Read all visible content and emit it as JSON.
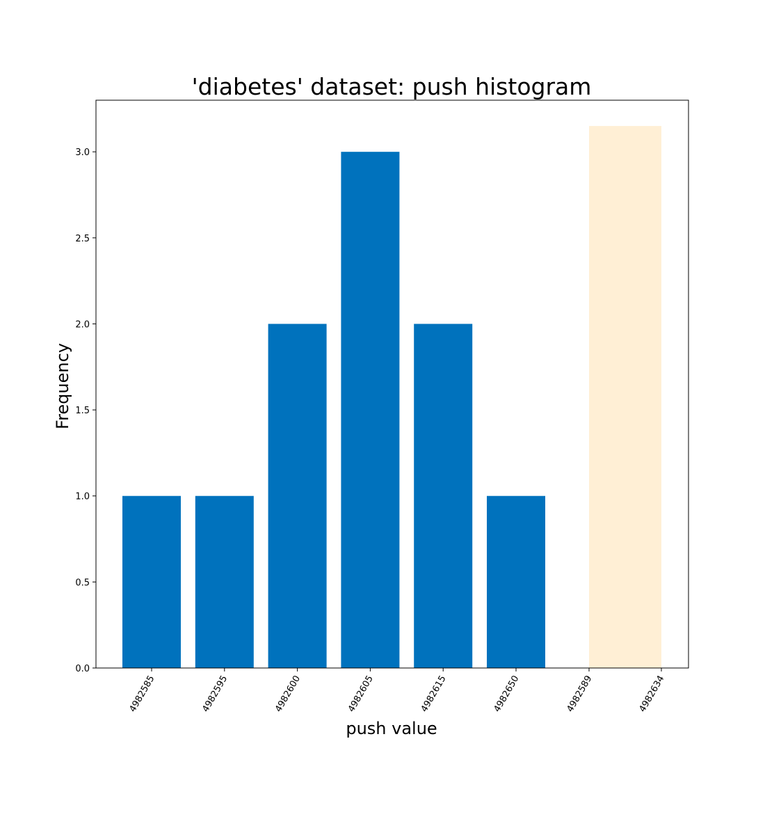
{
  "chart_data": {
    "type": "bar",
    "title": "'diabetes' dataset: push histogram",
    "xlabel": "push value",
    "ylabel": "Frequency",
    "ylim": [
      0,
      3.3
    ],
    "yticks": [
      "0.0",
      "0.5",
      "1.0",
      "1.5",
      "2.0",
      "2.5",
      "3.0"
    ],
    "categories": [
      "4982585",
      "4982595",
      "4982600",
      "4982605",
      "4982615",
      "4982650"
    ],
    "values": [
      1,
      1,
      2,
      3,
      2,
      1
    ],
    "bar_color": "#0072BD",
    "highlight_band": {
      "from_label": "4982589",
      "to_label": "4982634",
      "top_value": 3.15,
      "color": "#FFEFD5"
    },
    "grid": false
  }
}
